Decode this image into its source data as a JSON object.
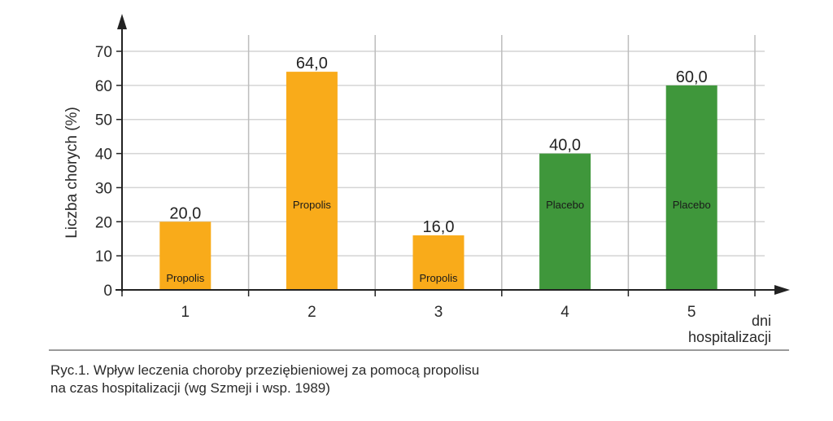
{
  "chart_data": {
    "type": "bar",
    "title": "",
    "categories": [
      "1",
      "2",
      "3",
      "4",
      "5"
    ],
    "values": [
      20.0,
      64.0,
      16.0,
      40.0,
      60.0
    ],
    "value_labels": [
      "20,0",
      "64,0",
      "16,0",
      "40,0",
      "60,0"
    ],
    "bar_labels": [
      "Propolis",
      "Propolis",
      "Propolis",
      "Placebo",
      "Placebo"
    ],
    "bar_colors": [
      "#F9AB1A",
      "#F9AB1A",
      "#F9AB1A",
      "#3F973B",
      "#3F973B"
    ],
    "groups": [
      {
        "name": "Propolis",
        "color": "#F9AB1A",
        "categories": [
          "1",
          "2",
          "3"
        ],
        "values": [
          20.0,
          64.0,
          16.0
        ]
      },
      {
        "name": "Placebo",
        "color": "#3F973B",
        "categories": [
          "4",
          "5"
        ],
        "values": [
          40.0,
          60.0
        ]
      }
    ],
    "xlabel": "dni hospitalizacji",
    "xlabel_lines": [
      "dni",
      "hospitalizacji"
    ],
    "ylabel": "Liczba chorych (%)",
    "ylim": [
      0,
      70
    ],
    "yticks": [
      0,
      10,
      20,
      30,
      40,
      50,
      60,
      70
    ],
    "grid": true,
    "legend": "none"
  },
  "caption": {
    "line1": "Ryc.1. Wpływ leczenia choroby przeziębieniowej za pomocą propolisu",
    "line2": "na czas hospitalizacji (wg Szmeji i wsp. 1989)"
  }
}
